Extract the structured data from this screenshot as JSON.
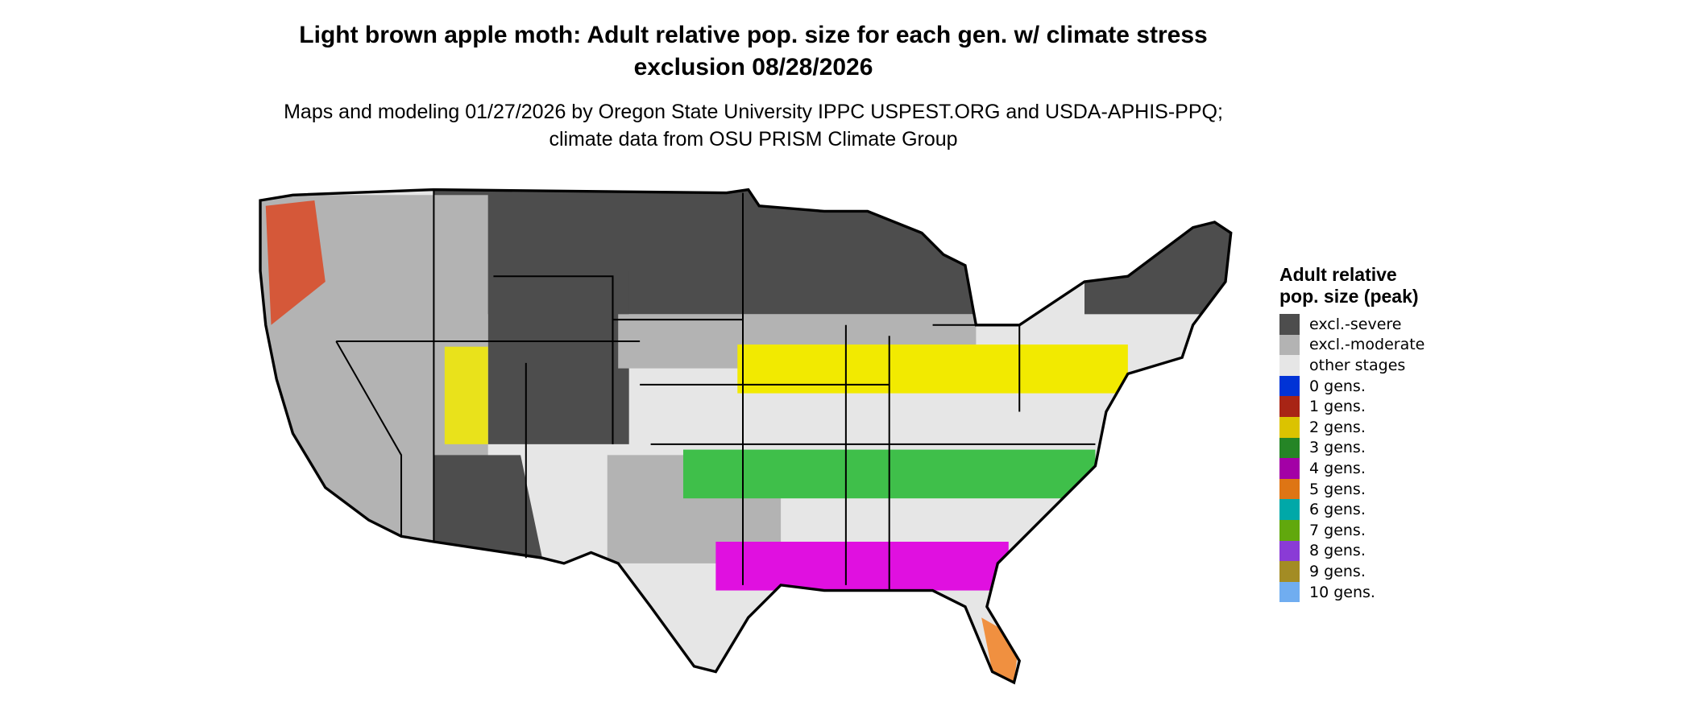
{
  "title": "Light brown apple moth: Adult relative pop. size for each gen. w/ climate stress exclusion 08/28/2026",
  "subtitle": "Maps and modeling 01/27/2026 by Oregon State University IPPC USPEST.ORG and USDA-APHIS-PPQ; climate data from OSU PRISM Climate Group",
  "legend": {
    "title": "Adult relative pop. size (peak)",
    "items": [
      {
        "label": "excl.-severe",
        "color": "#4d4d4d"
      },
      {
        "label": "excl.-moderate",
        "color": "#b3b3b3"
      },
      {
        "label": "other stages",
        "color": "#e6e6e6"
      },
      {
        "label": "0 gens.",
        "color": "#0033d6"
      },
      {
        "label": "1 gens.",
        "color": "#a82415"
      },
      {
        "label": "2 gens.",
        "color": "#dbc300"
      },
      {
        "label": "3 gens.",
        "color": "#258526"
      },
      {
        "label": "4 gens.",
        "color": "#a300a6"
      },
      {
        "label": "5 gens.",
        "color": "#de7514"
      },
      {
        "label": "6 gens.",
        "color": "#00a8a8"
      },
      {
        "label": "7 gens.",
        "color": "#61a80d"
      },
      {
        "label": "8 gens.",
        "color": "#8a3bd6"
      },
      {
        "label": "9 gens.",
        "color": "#a38c24"
      },
      {
        "label": "10 gens.",
        "color": "#70adf0"
      }
    ]
  },
  "map_colors": {
    "severe": "#4d4d4d",
    "moderate": "#b3b3b3",
    "other": "#e6e6e6",
    "gen1": "#e03a10",
    "gen2": "#f2ea00",
    "gen3": "#3fbf4a",
    "gen4": "#e010e0",
    "gen5": "#f09040"
  }
}
